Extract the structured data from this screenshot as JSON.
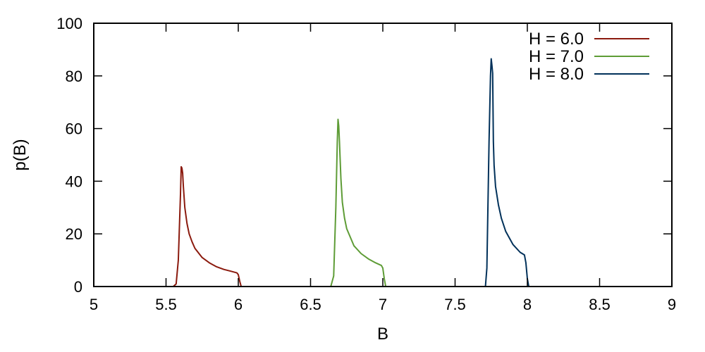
{
  "chart_data": {
    "type": "line",
    "xlabel": "B",
    "ylabel": "p(B)",
    "xlim": [
      5,
      9
    ],
    "ylim": [
      0,
      100
    ],
    "xticks": [
      5,
      5.5,
      6,
      6.5,
      7,
      7.5,
      8,
      8.5,
      9
    ],
    "xtick_labels": [
      "5",
      "5.5",
      "6",
      "6.5",
      "7",
      "7.5",
      "8",
      "8.5",
      "9"
    ],
    "yticks": [
      0,
      20,
      40,
      60,
      80,
      100
    ],
    "ytick_labels": [
      "0",
      "20",
      "40",
      "60",
      "80",
      "100"
    ],
    "grid": false,
    "legend_position": "top-right",
    "series": [
      {
        "name": "H = 6.0",
        "color": "#8b1a0e",
        "x": [
          5.0,
          5.55,
          5.57,
          5.585,
          5.6,
          5.605,
          5.61,
          5.615,
          5.62,
          5.63,
          5.645,
          5.66,
          5.68,
          5.7,
          5.75,
          5.8,
          5.85,
          5.9,
          5.95,
          5.99,
          6.0,
          6.01,
          6.02,
          9.0
        ],
        "y": [
          0,
          0,
          1,
          10,
          35,
          45.5,
          45,
          43,
          38,
          30,
          24,
          20,
          17,
          14.5,
          11,
          9,
          7.5,
          6.5,
          5.8,
          5.2,
          4.5,
          2,
          0,
          0
        ]
      },
      {
        "name": "H = 7.0",
        "color": "#5e9c36",
        "x": [
          5.0,
          6.64,
          6.66,
          6.675,
          6.685,
          6.69,
          6.695,
          6.7,
          6.71,
          6.72,
          6.735,
          6.75,
          6.8,
          6.85,
          6.9,
          6.95,
          6.99,
          7.0,
          7.01,
          7.02,
          9.0
        ],
        "y": [
          0,
          0,
          4,
          30,
          55,
          63.5,
          61,
          55,
          41,
          32,
          26,
          22,
          15.5,
          12.5,
          10.5,
          9,
          8,
          7,
          3,
          0,
          0
        ]
      },
      {
        "name": "H = 8.0",
        "color": "#01315a",
        "x": [
          5.0,
          7.71,
          7.72,
          7.735,
          7.745,
          7.75,
          7.755,
          7.76,
          7.765,
          7.77,
          7.78,
          7.8,
          7.82,
          7.85,
          7.9,
          7.95,
          7.98,
          7.99,
          8.0,
          8.01,
          9.0
        ],
        "y": [
          0,
          0,
          7,
          55,
          80,
          86.5,
          84,
          81,
          55,
          46,
          38,
          31,
          26,
          21,
          16,
          13,
          12,
          9,
          3,
          0,
          0
        ]
      }
    ]
  }
}
